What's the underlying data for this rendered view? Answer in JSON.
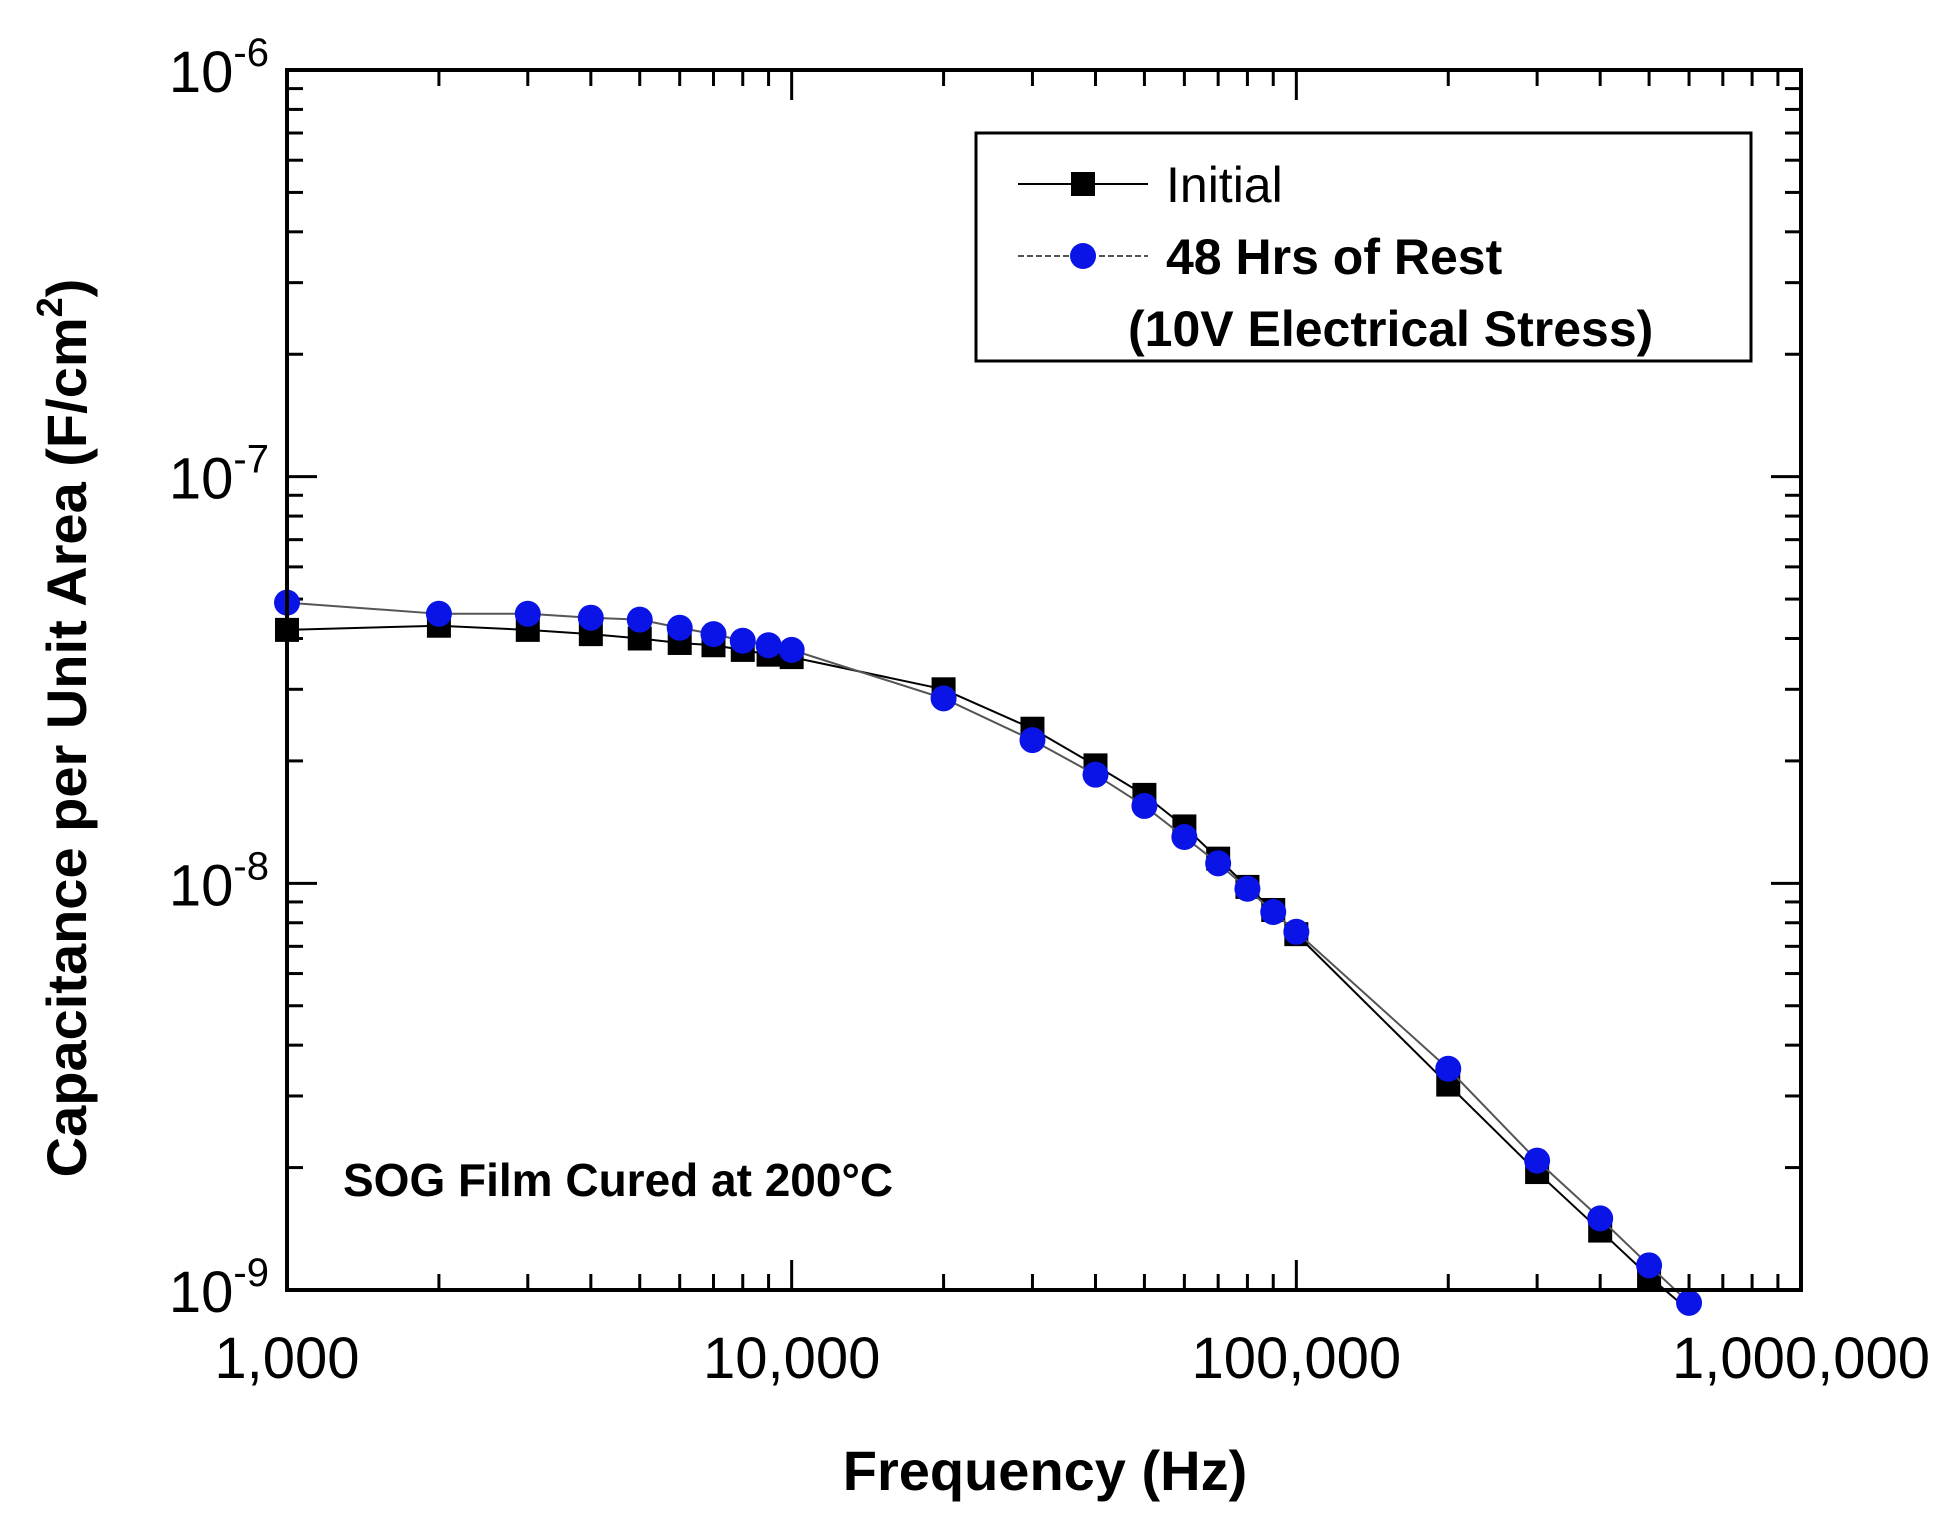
{
  "chart_data": {
    "type": "line",
    "title": "",
    "xlabel": "Frequency (Hz)",
    "ylabel": "Capacitance per Unit Area (F/cm",
    "ylabel_sup": "2",
    "ylabel_close": ")",
    "xscale": "log",
    "yscale": "log",
    "xlim": [
      1000,
      1000000
    ],
    "ylim": [
      1e-09,
      1e-06
    ],
    "grid": false,
    "legend_position": "top-right",
    "x_ticks": [
      {
        "value": 1000,
        "label": "1,000"
      },
      {
        "value": 10000,
        "label": "10,000"
      },
      {
        "value": 100000,
        "label": "100,000"
      },
      {
        "value": 1000000,
        "label": "1,000,000"
      }
    ],
    "y_ticks": [
      {
        "value": 1e-09,
        "base": "10",
        "exp": "-9"
      },
      {
        "value": 1e-08,
        "base": "10",
        "exp": "-8"
      },
      {
        "value": 1e-07,
        "base": "10",
        "exp": "-7"
      },
      {
        "value": 1e-06,
        "base": "10",
        "exp": "-6"
      }
    ],
    "series": [
      {
        "name": "Initial",
        "marker": "square",
        "color": "#000000",
        "line_color": "#000000",
        "x": [
          1000,
          2000,
          3000,
          4000,
          5000,
          6000,
          7000,
          8000,
          9000,
          10000,
          20000,
          30000,
          40000,
          50000,
          60000,
          70000,
          80000,
          90000,
          100000,
          200000,
          300000,
          400000,
          500000,
          600000
        ],
        "values": [
          4.2e-08,
          4.3e-08,
          4.2e-08,
          4.1e-08,
          4e-08,
          3.9e-08,
          3.85e-08,
          3.75e-08,
          3.65e-08,
          3.6e-08,
          3e-08,
          2.4e-08,
          1.95e-08,
          1.65e-08,
          1.38e-08,
          1.15e-08,
          9.8e-09,
          8.6e-09,
          7.5e-09,
          3.2e-09,
          1.95e-09,
          1.4e-09,
          1.08e-09,
          8.9e-10
        ]
      },
      {
        "name": "48 Hrs of Rest",
        "name_line2": "(10V Electrical Stress)",
        "marker": "circle",
        "color": "#0a14e6",
        "line_color": "#555555",
        "x": [
          1000,
          2000,
          3000,
          4000,
          5000,
          6000,
          7000,
          8000,
          9000,
          10000,
          20000,
          30000,
          40000,
          50000,
          60000,
          70000,
          80000,
          90000,
          100000,
          200000,
          300000,
          400000,
          500000,
          600000
        ],
        "values": [
          4.9e-08,
          4.6e-08,
          4.6e-08,
          4.5e-08,
          4.45e-08,
          4.25e-08,
          4.1e-08,
          3.95e-08,
          3.85e-08,
          3.75e-08,
          2.85e-08,
          2.25e-08,
          1.85e-08,
          1.55e-08,
          1.3e-08,
          1.12e-08,
          9.7e-09,
          8.5e-09,
          7.6e-09,
          3.5e-09,
          2.08e-09,
          1.5e-09,
          1.15e-09,
          9.3e-10
        ]
      }
    ],
    "annotations": [
      "SOG Film Cured at 200°C"
    ]
  }
}
